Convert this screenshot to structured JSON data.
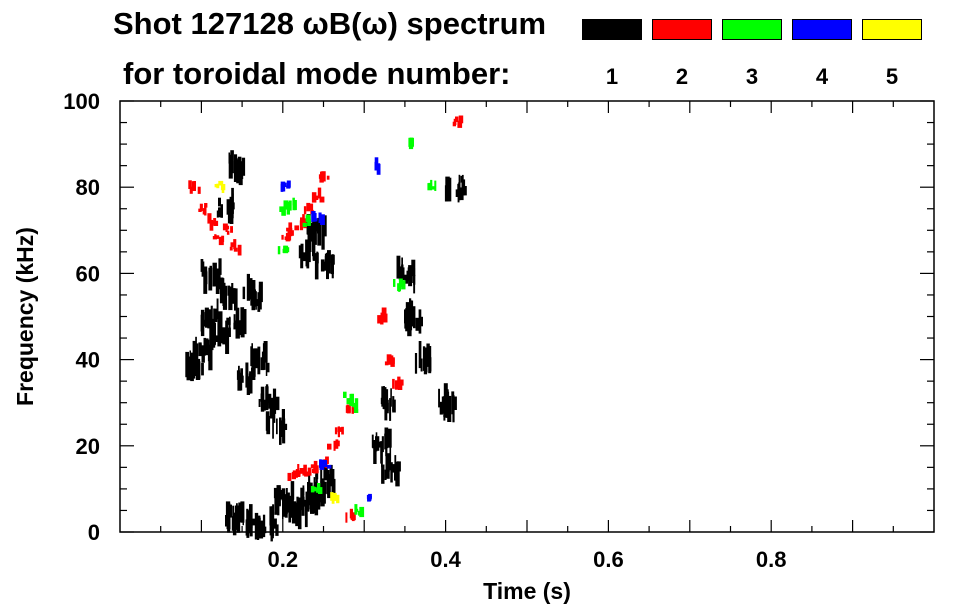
{
  "title_line1": "Shot 127128 ωB(ω) spectrum",
  "title_line2": "for toroidal mode number:",
  "legend": [
    {
      "label": "1",
      "color": "#000000"
    },
    {
      "label": "2",
      "color": "#ff0000"
    },
    {
      "label": "3",
      "color": "#00ff00"
    },
    {
      "label": "4",
      "color": "#0000ff"
    },
    {
      "label": "5",
      "color": "#ffff00"
    }
  ],
  "chart_data": {
    "type": "heatmap",
    "title": "Shot 127128 ωB(ω) spectrum",
    "xlabel": "Time (s)",
    "ylabel": "Frequency (kHz)",
    "xlim": [
      0.0,
      1.0
    ],
    "ylim": [
      0,
      100
    ],
    "xticks": [
      0.2,
      0.4,
      0.6,
      0.8
    ],
    "xtick_labels": [
      "0.2",
      "0.4",
      "0.6",
      "0.8"
    ],
    "yticks": [
      0,
      20,
      40,
      60,
      80,
      100
    ],
    "ytick_labels": [
      "0",
      "20",
      "40",
      "60",
      "80",
      "100"
    ],
    "grid": false,
    "legend_position": "top",
    "series": [
      {
        "name": "1",
        "color": "#000000",
        "points": [
          [
            0.09,
            38
          ],
          [
            0.1,
            42
          ],
          [
            0.11,
            50
          ],
          [
            0.12,
            45
          ],
          [
            0.11,
            60
          ],
          [
            0.13,
            55
          ],
          [
            0.14,
            48
          ],
          [
            0.13,
            75
          ],
          [
            0.14,
            85
          ],
          [
            0.15,
            35
          ],
          [
            0.16,
            55
          ],
          [
            0.17,
            40
          ],
          [
            0.18,
            30
          ],
          [
            0.19,
            25
          ],
          [
            0.2,
            8
          ],
          [
            0.21,
            5
          ],
          [
            0.22,
            6
          ],
          [
            0.23,
            8
          ],
          [
            0.24,
            9
          ],
          [
            0.25,
            12
          ],
          [
            0.23,
            65
          ],
          [
            0.24,
            70
          ],
          [
            0.25,
            63
          ],
          [
            0.32,
            20
          ],
          [
            0.33,
            15
          ],
          [
            0.33,
            30
          ],
          [
            0.35,
            60
          ],
          [
            0.36,
            50
          ],
          [
            0.37,
            40
          ],
          [
            0.4,
            30
          ],
          [
            0.41,
            80
          ],
          [
            0.14,
            3
          ],
          [
            0.16,
            2
          ],
          [
            0.18,
            2
          ]
        ]
      },
      {
        "name": "2",
        "color": "#ff0000",
        "points": [
          [
            0.09,
            80
          ],
          [
            0.1,
            75
          ],
          [
            0.11,
            72
          ],
          [
            0.12,
            68
          ],
          [
            0.13,
            70
          ],
          [
            0.14,
            66
          ],
          [
            0.2,
            68
          ],
          [
            0.21,
            70
          ],
          [
            0.22,
            72
          ],
          [
            0.23,
            75
          ],
          [
            0.24,
            78
          ],
          [
            0.25,
            82
          ],
          [
            0.21,
            13
          ],
          [
            0.22,
            14
          ],
          [
            0.23,
            14
          ],
          [
            0.24,
            15
          ],
          [
            0.25,
            16
          ],
          [
            0.26,
            20
          ],
          [
            0.27,
            24
          ],
          [
            0.28,
            28
          ],
          [
            0.32,
            50
          ],
          [
            0.33,
            40
          ],
          [
            0.34,
            35
          ],
          [
            0.41,
            95
          ],
          [
            0.28,
            4
          ]
        ]
      },
      {
        "name": "3",
        "color": "#00ff00",
        "points": [
          [
            0.2,
            75
          ],
          [
            0.21,
            76
          ],
          [
            0.2,
            65
          ],
          [
            0.23,
            72
          ],
          [
            0.28,
            31
          ],
          [
            0.29,
            29
          ],
          [
            0.36,
            90
          ],
          [
            0.38,
            80
          ],
          [
            0.34,
            57
          ],
          [
            0.24,
            10
          ],
          [
            0.29,
            5
          ]
        ]
      },
      {
        "name": "4",
        "color": "#0000ff",
        "points": [
          [
            0.2,
            80
          ],
          [
            0.24,
            73
          ],
          [
            0.25,
            15
          ],
          [
            0.3,
            8
          ],
          [
            0.31,
            85
          ]
        ]
      },
      {
        "name": "5",
        "color": "#ffff00",
        "points": [
          [
            0.12,
            80
          ],
          [
            0.26,
            8
          ]
        ]
      }
    ]
  }
}
